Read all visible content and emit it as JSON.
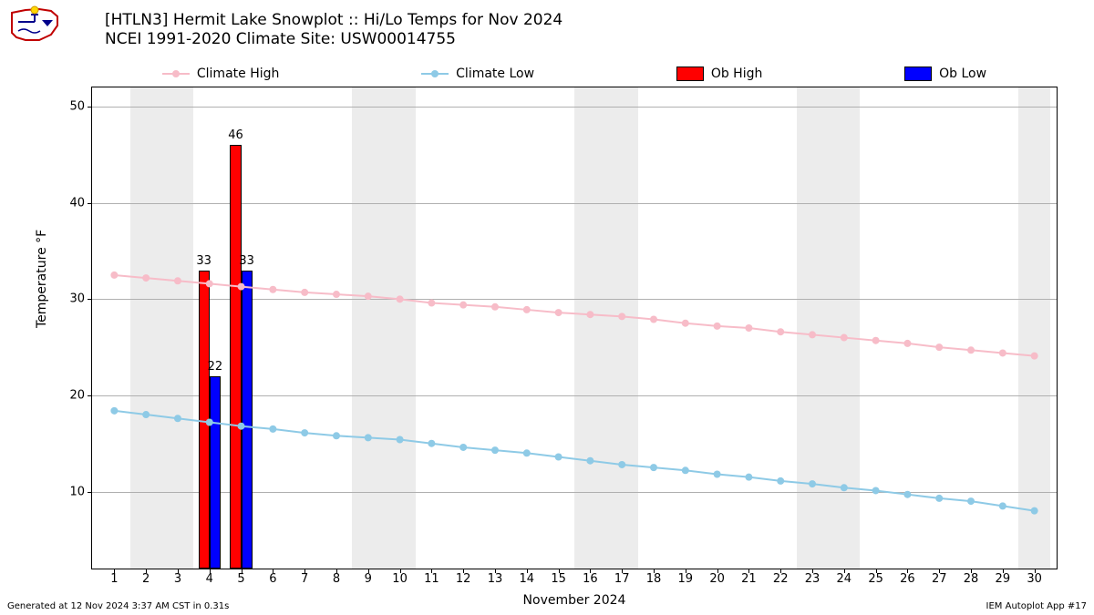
{
  "title_line1": "[HTLN3] Hermit Lake Snowplot :: Hi/Lo Temps for Nov 2024",
  "title_line2": "NCEI 1991-2020 Climate Site: USW00014755",
  "footer_left": "Generated at 12 Nov 2024 3:37 AM CST in 0.31s",
  "footer_right": "IEM Autoplot App #17",
  "ylabel": "Temperature °F",
  "xlabel": "November 2024",
  "legend": {
    "climate_high": "Climate High",
    "climate_low": "Climate Low",
    "ob_high": "Ob High",
    "ob_low": "Ob Low"
  },
  "chart": {
    "type": "combo-bar-line",
    "xlim": [
      0.3,
      30.7
    ],
    "ylim": [
      2,
      52
    ],
    "y_ticks": [
      10,
      20,
      30,
      40,
      50
    ],
    "x_ticks": [
      1,
      2,
      3,
      4,
      5,
      6,
      7,
      8,
      9,
      10,
      11,
      12,
      13,
      14,
      15,
      16,
      17,
      18,
      19,
      20,
      21,
      22,
      23,
      24,
      25,
      26,
      27,
      28,
      29,
      30
    ],
    "weekend_days": [
      2,
      3,
      9,
      10,
      16,
      17,
      23,
      24,
      30
    ],
    "grid_color": "#b0b0b0",
    "background_color": "#ffffff",
    "weekend_band_color": "#ececec",
    "bar_width": 0.35,
    "colors": {
      "climate_high": "#f7bcc8",
      "climate_low": "#8ecae6",
      "ob_high": "#ff0000",
      "ob_low": "#0000ff",
      "bar_edge": "#000000"
    },
    "climate_high_series": [
      32.5,
      32.2,
      31.9,
      31.6,
      31.3,
      31.0,
      30.7,
      30.5,
      30.3,
      30.0,
      29.6,
      29.4,
      29.2,
      28.9,
      28.6,
      28.4,
      28.2,
      27.9,
      27.5,
      27.2,
      27.0,
      26.6,
      26.3,
      26.0,
      25.7,
      25.4,
      25.0,
      24.7,
      24.4,
      24.1
    ],
    "climate_low_series": [
      18.4,
      18.0,
      17.6,
      17.2,
      16.8,
      16.5,
      16.1,
      15.8,
      15.6,
      15.4,
      15.0,
      14.6,
      14.3,
      14.0,
      13.6,
      13.2,
      12.8,
      12.5,
      12.2,
      11.8,
      11.5,
      11.1,
      10.8,
      10.4,
      10.1,
      9.7,
      9.3,
      9.0,
      8.5,
      8.0
    ],
    "observations": [
      {
        "day": 4,
        "high": 33,
        "low": 22
      },
      {
        "day": 5,
        "high": 46,
        "low": 33
      }
    ],
    "marker_radius": 4,
    "line_width": 2,
    "font_size_ticks": 13,
    "font_size_axis_title": 14,
    "font_size_bar_label": 13
  }
}
